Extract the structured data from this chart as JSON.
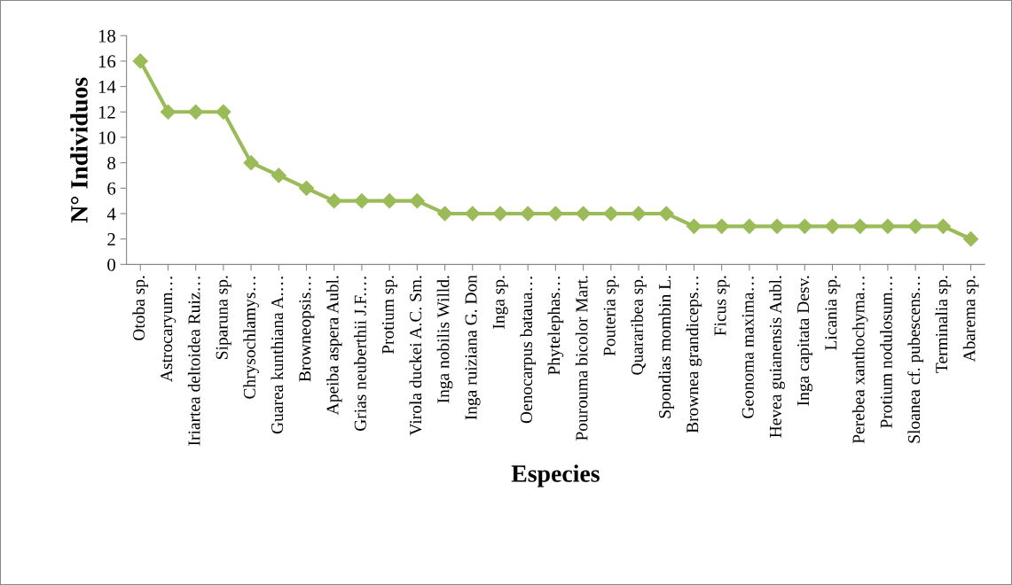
{
  "chart_data": {
    "type": "line",
    "xlabel": "Especies",
    "ylabel": "N° Individuos",
    "categories": [
      "Otoba sp.",
      "Astrocaryum…",
      "Iriartea deltoidea Ruiz…",
      "Siparuna sp.",
      "Chrysochlamys…",
      "Guarea kunthiana A.…",
      "Browneopsis…",
      "Apeiba aspera Aubl.",
      "Grias neuberthii J.F.…",
      "Protium sp.",
      "Virola duckei A.C. Sm.",
      "Inga nobilis Willd.",
      "Inga ruiziana G. Don",
      "Inga sp.",
      "Oenocarpus bataua…",
      "Phytelephas…",
      "Pourouma bicolor Mart.",
      "Pouteria sp.",
      "Quararibea sp.",
      "Spondias mombin L.",
      "Brownea grandiceps…",
      "Ficus sp.",
      "Geonoma maxima…",
      "Hevea guianensis Aubl.",
      "Inga capitata Desv.",
      "Licania sp.",
      "Perebea xanthochyma…",
      "Protium nodulosum…",
      "Sloanea cf. pubescens…",
      "Terminalia sp.",
      "Abarema sp."
    ],
    "series": [
      {
        "color": "#9bbb59",
        "values": [
          16,
          12,
          12,
          12,
          8,
          7,
          6,
          5,
          5,
          5,
          5,
          4,
          4,
          4,
          4,
          4,
          4,
          4,
          4,
          4,
          3,
          3,
          3,
          3,
          3,
          3,
          3,
          3,
          3,
          3,
          2
        ]
      }
    ],
    "ylim": [
      0,
      18
    ],
    "yticks": [
      0,
      2,
      4,
      6,
      8,
      10,
      12,
      14,
      16,
      18
    ],
    "grid": false,
    "marker": "diamond",
    "line_style": "solid"
  }
}
